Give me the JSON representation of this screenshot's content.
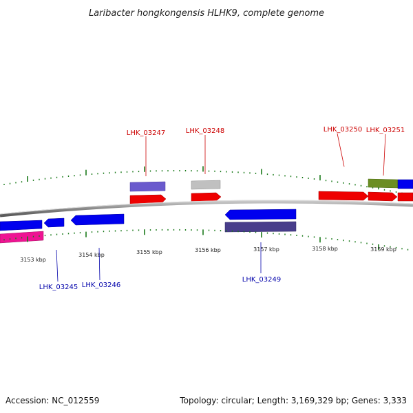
{
  "title": "Laribacter hongkongensis HLHK9, complete genome",
  "footer": {
    "accession": "Accession: NC_012559",
    "stats": "Topology: circular; Length: 3,169,329 bp; Genes: 3,333"
  },
  "colors": {
    "backbone": "#888888",
    "ticks": "#1a7a1a",
    "forward_label": "#cc0000",
    "reverse_label": "#0000aa"
  },
  "kbp_labels": [
    "3153 kbp",
    "3154 kbp",
    "3155 kbp",
    "3156 kbp",
    "3157 kbp",
    "3158 kbp",
    "3159 kbp"
  ],
  "gene_labels": [
    {
      "name": "LHK_03245",
      "strand": "reverse"
    },
    {
      "name": "LHK_03246",
      "strand": "reverse"
    },
    {
      "name": "LHK_03247",
      "strand": "forward"
    },
    {
      "name": "LHK_03248",
      "strand": "forward"
    },
    {
      "name": "LHK_03249",
      "strand": "reverse"
    },
    {
      "name": "LHK_03250",
      "strand": "forward"
    },
    {
      "name": "LHK_03251",
      "strand": "forward"
    }
  ]
}
